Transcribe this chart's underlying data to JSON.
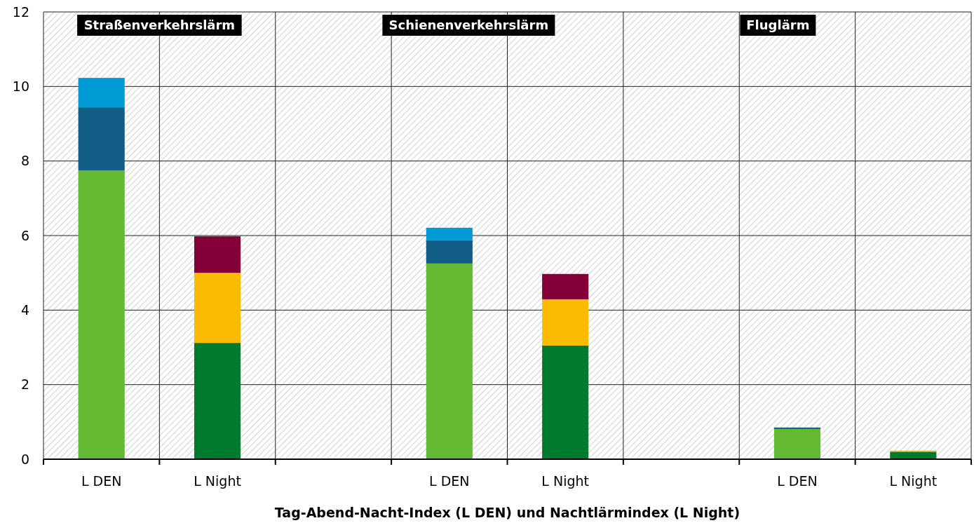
{
  "chart_data": {
    "type": "bar",
    "stacked": true,
    "categories": [
      "L DEN",
      "L Night",
      null,
      "L DEN",
      "L Night",
      null,
      "L DEN",
      "L Night"
    ],
    "series": [
      {
        "color": "#63b932",
        "values": [
          7.75,
          null,
          null,
          5.25,
          null,
          null,
          0.81,
          null
        ]
      },
      {
        "color": "#125d86",
        "values": [
          1.69,
          null,
          null,
          0.62,
          null,
          null,
          0.04,
          null
        ]
      },
      {
        "color": "#009bd5",
        "values": [
          0.79,
          null,
          null,
          0.34,
          null,
          null,
          null,
          null
        ]
      },
      {
        "color": "#007a2d",
        "values": [
          null,
          3.12,
          null,
          null,
          3.05,
          null,
          null,
          0.2
        ]
      },
      {
        "color": "#fabb00",
        "values": [
          null,
          1.88,
          null,
          null,
          1.24,
          null,
          null,
          0.03
        ]
      },
      {
        "color": "#830038",
        "values": [
          null,
          0.98,
          null,
          null,
          0.68,
          null,
          null,
          null
        ]
      }
    ],
    "ylim": [
      0,
      12
    ],
    "yticks": [
      0,
      2,
      4,
      6,
      8,
      10,
      12
    ],
    "grid": true,
    "xlabel": "Tag-Abend-Nacht-Index (L DEN) und Nachtlärmindex (L Night)",
    "annotations": [
      "Straßenverkehrslärm",
      "Schienenverkehrslärm",
      "Fluglärm"
    ]
  }
}
